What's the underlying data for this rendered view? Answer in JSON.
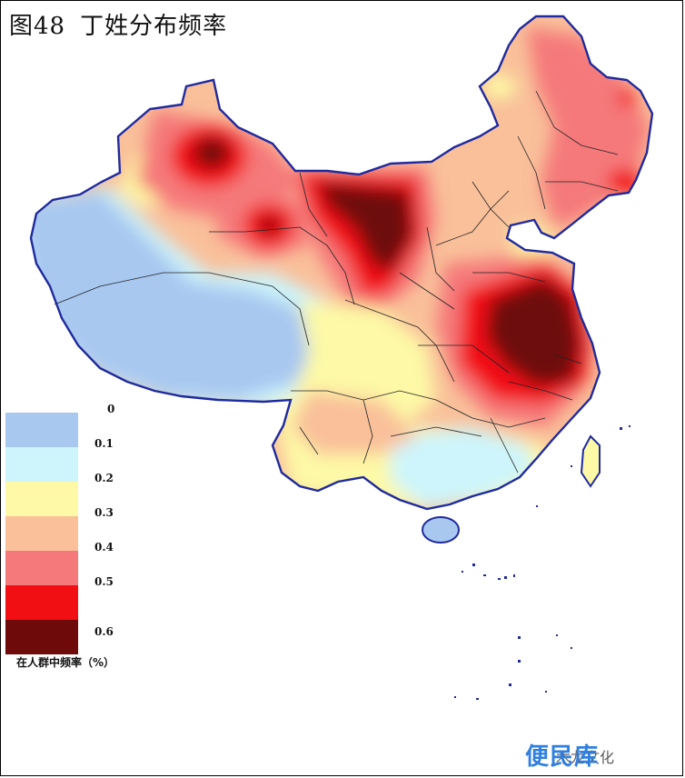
{
  "title": {
    "figure": "图48",
    "text": "丁姓分布频率"
  },
  "legend": {
    "thresholds": [
      "0",
      "0.1",
      "0.2",
      "0.3",
      "0.4",
      "0.5",
      "0.6"
    ],
    "colors": [
      "#a8c8f0",
      "#cdf5fb",
      "#fdf9a6",
      "#f9c09a",
      "#f5797a",
      "#f20f14",
      "#6e0a0a"
    ],
    "caption": "在人群中频率（%）"
  },
  "watermark": {
    "text": "便民库",
    "overlay": "木龙文化"
  }
}
